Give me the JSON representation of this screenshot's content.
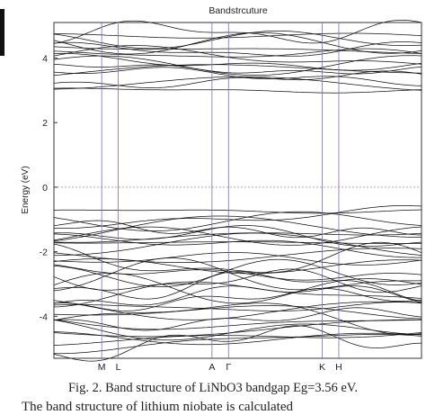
{
  "chart_data": {
    "type": "line",
    "title": "Bandstrcuture",
    "ylabel": "Energy (eV)",
    "xlabel": "",
    "ylim": [
      -5.3,
      5.1
    ],
    "yticks": [
      -4,
      -2,
      0,
      2,
      4
    ],
    "fermi_level": 0,
    "bandgap_eV": 3.56,
    "k_points": [
      {
        "label": "M",
        "x": 0.13
      },
      {
        "label": "L",
        "x": 0.175
      },
      {
        "label": "A",
        "x": 0.43
      },
      {
        "label": "Γ",
        "x": 0.475
      },
      {
        "label": "K",
        "x": 0.73
      },
      {
        "label": "H",
        "x": 0.775
      }
    ],
    "conduction_band": {
      "min_eV": 2.9,
      "max_eV": 4.9,
      "band_count": 16
    },
    "valence_band": {
      "min_eV": -5.0,
      "max_eV": -0.66,
      "band_count": 36
    }
  },
  "caption": "Fig. 2. Band structure of LiNbO3 bandgap Eg=3.56 eV.",
  "body_fragment": "The band structure of lithium niobate is calculated"
}
